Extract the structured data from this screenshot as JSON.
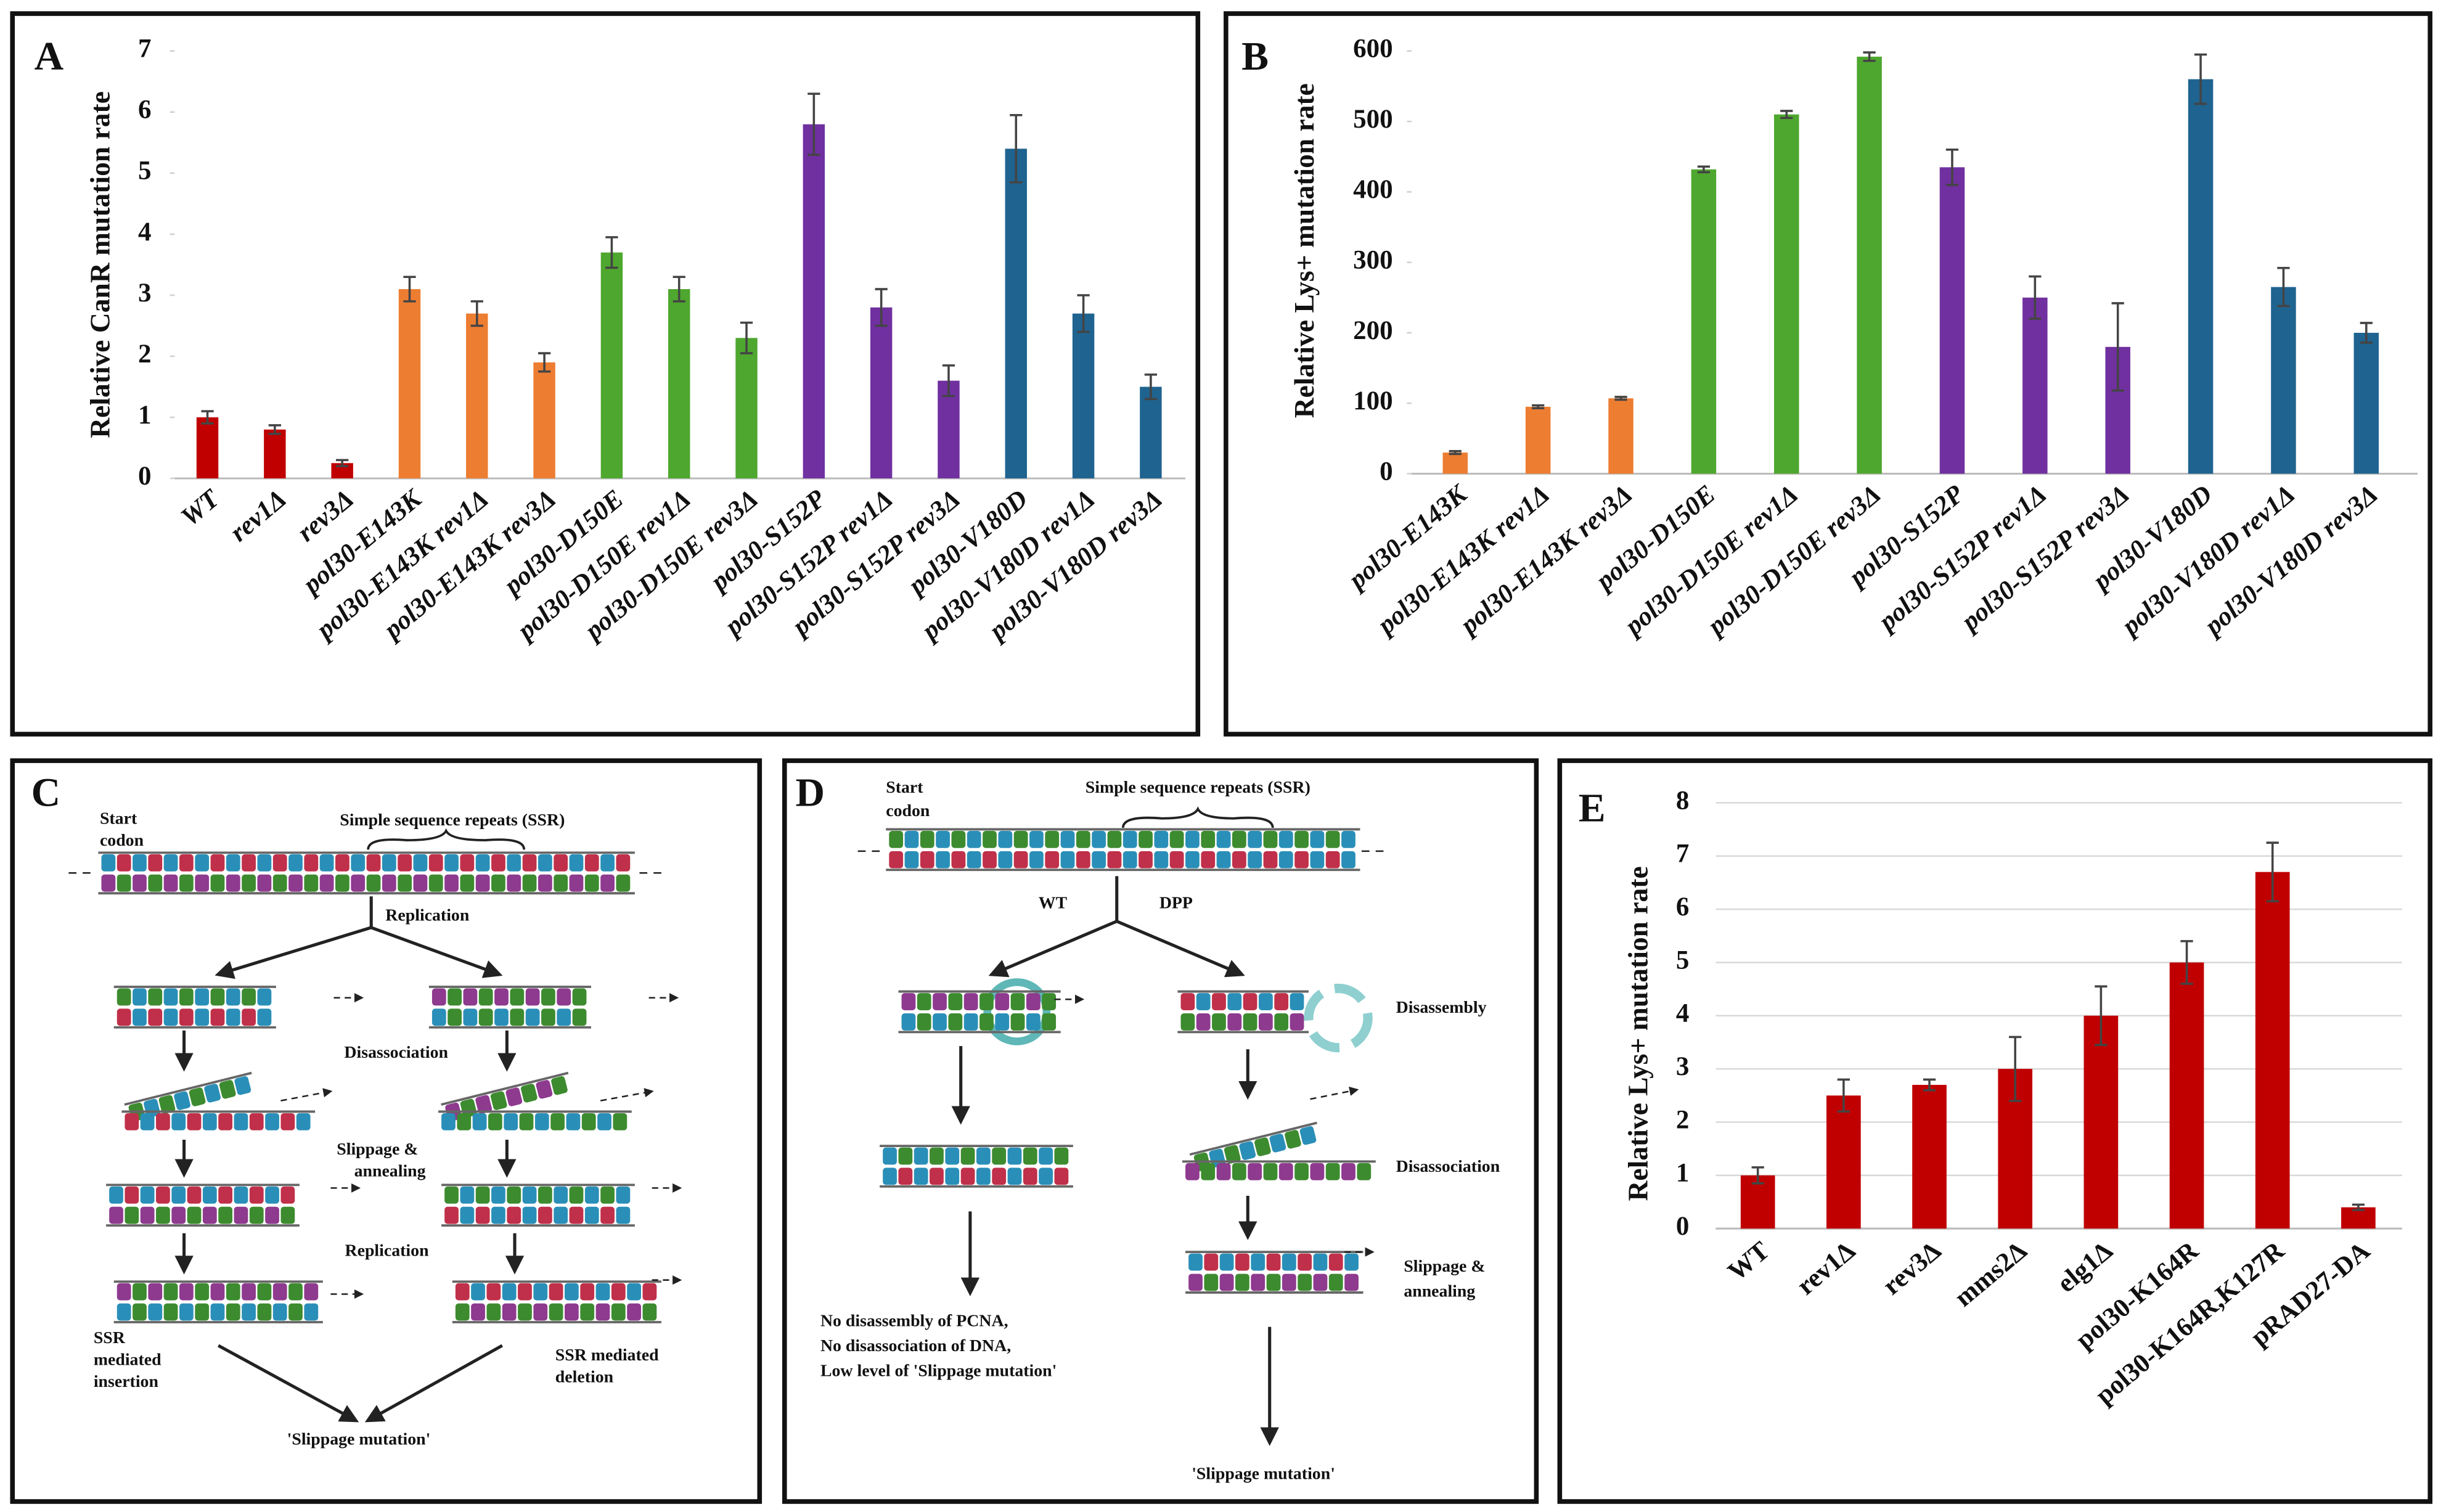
{
  "chart_data": [
    {
      "type": "bar",
      "panel": "A",
      "y_label": "Relative CanR mutation rate",
      "label_style": "italic",
      "grid": false,
      "categories": [
        "WT",
        "rev1Δ",
        "rev3Δ",
        "pol30-E143K",
        "pol30-E143K rev1Δ",
        "pol30-E143K rev3Δ",
        "pol30-D150E",
        "pol30-D150E rev1Δ",
        "pol30-D150E rev3Δ",
        "pol30-S152P",
        "pol30-S152P rev1Δ",
        "pol30-S152P rev3Δ",
        "pol30-V180D",
        "pol30-V180D rev1Δ",
        "pol30-V180D rev3Δ"
      ],
      "values": [
        1.0,
        0.8,
        0.25,
        3.1,
        2.7,
        1.9,
        3.7,
        3.1,
        2.3,
        5.8,
        2.8,
        1.6,
        5.4,
        2.7,
        1.5
      ],
      "errors": [
        0.1,
        0.07,
        0.05,
        0.2,
        0.2,
        0.15,
        0.25,
        0.2,
        0.25,
        0.5,
        0.3,
        0.25,
        0.55,
        0.3,
        0.2
      ],
      "colors": [
        "#c00000",
        "#c00000",
        "#c00000",
        "#ed7d31",
        "#ed7d31",
        "#ed7d31",
        "#4ea72e",
        "#4ea72e",
        "#4ea72e",
        "#7030a0",
        "#7030a0",
        "#7030a0",
        "#1f6390",
        "#1f6390",
        "#1f6390"
      ],
      "ylim": [
        0,
        7
      ],
      "yticks": [
        0,
        1,
        2,
        3,
        4,
        5,
        6,
        7
      ]
    },
    {
      "type": "bar",
      "panel": "B",
      "y_label": "Relative Lys+ mutation rate",
      "label_style": "italic",
      "grid": false,
      "categories": [
        "pol30-E143K",
        "pol30-E143K rev1Δ",
        "pol30-E143K rev3Δ",
        "pol30-D150E",
        "pol30-D150E rev1Δ",
        "pol30-D150E rev3Δ",
        "pol30-S152P",
        "pol30-S152P rev1Δ",
        "pol30-S152P rev3Δ",
        "pol30-V180D",
        "pol30-V180D rev1Δ",
        "pol30-V180D rev3Δ"
      ],
      "values": [
        30,
        95,
        107,
        432,
        510,
        592,
        435,
        250,
        180,
        560,
        265,
        200
      ],
      "errors": [
        2,
        2,
        2,
        4,
        5,
        6,
        25,
        30,
        62,
        35,
        27,
        14
      ],
      "colors": [
        "#ed7d31",
        "#ed7d31",
        "#ed7d31",
        "#4ea72e",
        "#4ea72e",
        "#4ea72e",
        "#7030a0",
        "#7030a0",
        "#7030a0",
        "#1f6390",
        "#1f6390",
        "#1f6390"
      ],
      "ylim": [
        0,
        600
      ],
      "yticks": [
        0,
        100,
        200,
        300,
        400,
        500,
        600
      ]
    },
    {
      "type": "bar",
      "panel": "E",
      "y_label": "Relative Lys+ mutation rate",
      "label_style": "normal",
      "grid": true,
      "categories": [
        "WT",
        "rev1Δ",
        "rev3Δ",
        "mms2Δ",
        "elg1Δ",
        "pol30-K164R",
        "pol30-K164R,K127R",
        "pRAD27-DA"
      ],
      "values": [
        1.0,
        2.5,
        2.7,
        3.0,
        4.0,
        5.0,
        6.7,
        0.4
      ],
      "errors": [
        0.15,
        0.3,
        0.1,
        0.6,
        0.55,
        0.4,
        0.55,
        0.05
      ],
      "colors": [
        "#c00000",
        "#c00000",
        "#c00000",
        "#c00000",
        "#c00000",
        "#c00000",
        "#c00000",
        "#c00000"
      ],
      "ylim": [
        0,
        8
      ],
      "yticks": [
        0,
        1,
        2,
        3,
        4,
        5,
        6,
        7,
        8
      ]
    }
  ],
  "diagrams": {
    "C": {
      "panel": "C",
      "start_codon": [
        "Start",
        "codon"
      ],
      "ssr": "Simple sequence repeats (SSR)",
      "replication_1": "Replication",
      "disassociation": "Disassociation",
      "slippage": [
        "Slippage &",
        "annealing"
      ],
      "replication_2": "Replication",
      "insertion": [
        "SSR",
        "mediated",
        "insertion"
      ],
      "deletion": [
        "SSR mediated",
        "deletion"
      ],
      "result": "'Slippage mutation'"
    },
    "D": {
      "panel": "D",
      "start_codon": [
        "Start",
        "codon"
      ],
      "ssr": "Simple sequence repeats (SSR)",
      "wt": "WT",
      "dpp": "DPP",
      "disassembly": "Disassembly",
      "disassociation": "Disassociation",
      "slippage": [
        "Slippage &",
        "annealing"
      ],
      "outcome": [
        "No disassembly of PCNA,",
        "No disassociation of DNA,",
        "Low level of 'Slippage mutation'"
      ],
      "result": "'Slippage mutation'"
    }
  }
}
